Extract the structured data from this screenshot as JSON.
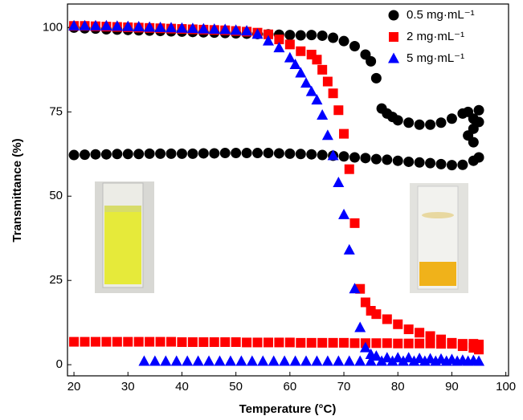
{
  "chart_data": {
    "type": "scatter",
    "x_label": "Temperature (°C)",
    "y_label": "Transmittance (%)",
    "xlim": [
      18.8,
      100.5
    ],
    "ylim": [
      -3.3,
      107
    ],
    "xticks": [
      20,
      30,
      40,
      50,
      60,
      70,
      80,
      90,
      100
    ],
    "yticks": [
      0,
      25,
      50,
      75,
      100
    ],
    "legend": "upper right",
    "series": [
      {
        "name": "0.5 mg·mL⁻¹",
        "color": "#000000",
        "marker": "circle",
        "x": [
          20,
          22,
          24,
          26,
          28,
          30,
          32,
          34,
          36,
          38,
          40,
          42,
          44,
          46,
          48,
          50,
          52,
          54,
          56,
          58,
          60,
          62,
          64,
          66,
          68,
          70,
          72,
          74,
          75,
          76,
          77,
          78,
          79,
          80,
          82,
          84,
          86,
          88,
          90,
          92,
          93,
          94,
          95,
          95,
          94,
          93,
          94,
          95,
          94,
          92,
          90,
          88,
          86,
          84,
          82,
          80,
          78,
          76,
          74,
          72,
          70,
          68,
          66,
          64,
          62,
          60,
          58,
          56,
          54,
          52,
          50,
          48,
          46,
          44,
          42,
          40,
          38,
          36,
          34,
          32,
          30,
          28,
          26,
          24,
          22,
          20
        ],
        "values": [
          100,
          99.8,
          99.7,
          99.5,
          99.4,
          99.3,
          99.2,
          99.1,
          99,
          98.9,
          98.8,
          98.7,
          98.6,
          98.5,
          98.4,
          98.3,
          98.2,
          98.1,
          98,
          97.9,
          97.8,
          97.7,
          97.8,
          97.6,
          97,
          96,
          94.5,
          92,
          90,
          85,
          76,
          74.5,
          73.5,
          72.5,
          71.8,
          71.2,
          71.2,
          71.8,
          73,
          74.5,
          75,
          73,
          75.5,
          72,
          70,
          68,
          66,
          61.5,
          60.5,
          59.3,
          59.2,
          59.5,
          59.8,
          60,
          60.2,
          60.5,
          60.8,
          61,
          61.3,
          61.5,
          61.8,
          62,
          62.2,
          62.4,
          62.5,
          62.6,
          62.7,
          62.8,
          62.8,
          62.8,
          62.8,
          62.8,
          62.7,
          62.7,
          62.6,
          62.6,
          62.6,
          62.6,
          62.6,
          62.5,
          62.5,
          62.5,
          62.4,
          62.4,
          62.3,
          62.2
        ]
      },
      {
        "name": "2 mg·mL⁻¹",
        "color": "#ff0000",
        "marker": "square",
        "x": [
          20,
          22,
          24,
          26,
          28,
          30,
          32,
          34,
          36,
          38,
          40,
          42,
          44,
          46,
          48,
          50,
          52,
          54,
          56,
          58,
          60,
          62,
          64,
          65,
          66,
          67,
          68,
          69,
          70,
          71,
          72,
          73,
          74,
          75,
          76,
          78,
          80,
          82,
          84,
          86,
          88,
          90,
          92,
          94,
          95,
          95,
          94,
          92,
          90,
          88,
          86,
          84,
          82,
          80,
          78,
          76,
          74,
          72,
          70,
          68,
          66,
          64,
          62,
          60,
          58,
          56,
          54,
          52,
          50,
          48,
          46,
          44,
          42,
          40,
          38,
          36,
          34,
          32,
          30,
          28,
          26,
          24,
          22,
          20
        ],
        "values": [
          100.5,
          100.5,
          100.4,
          100.3,
          100.2,
          100.1,
          100,
          99.9,
          99.8,
          99.7,
          99.6,
          99.5,
          99.4,
          99.3,
          99.2,
          99,
          98.8,
          98.5,
          98,
          96.5,
          95,
          93,
          92,
          90.5,
          87.5,
          84,
          80.5,
          75.5,
          68.5,
          58,
          42,
          22.5,
          18.5,
          16,
          15,
          13.5,
          12,
          10.5,
          9.5,
          8.5,
          7.5,
          6.5,
          5.5,
          5,
          4.5,
          6,
          6.2,
          6.2,
          6.2,
          6.2,
          6.3,
          6.3,
          6.3,
          6.3,
          6.4,
          6.4,
          6.4,
          6.4,
          6.5,
          6.5,
          6.5,
          6.5,
          6.5,
          6.6,
          6.6,
          6.6,
          6.6,
          6.6,
          6.7,
          6.7,
          6.7,
          6.7,
          6.7,
          6.7,
          6.8,
          6.8,
          6.8,
          6.8,
          6.8,
          6.8,
          6.8,
          6.8,
          6.8,
          6.8
        ]
      },
      {
        "name": "5 mg·mL⁻¹",
        "color": "#0000ff",
        "marker": "triangle",
        "x": [
          20,
          22,
          24,
          26,
          28,
          30,
          32,
          34,
          36,
          38,
          40,
          42,
          44,
          46,
          48,
          50,
          52,
          54,
          56,
          58,
          60,
          61,
          62,
          63,
          64,
          65,
          66,
          67,
          68,
          69,
          70,
          71,
          72,
          73,
          74,
          75,
          76,
          78,
          80,
          82,
          84,
          86,
          88,
          90,
          92,
          94,
          95,
          93,
          91,
          89,
          87,
          85,
          83,
          81,
          79,
          77,
          75,
          73,
          71,
          69,
          67,
          65,
          63,
          61,
          59,
          57,
          55,
          53,
          51,
          49,
          47,
          45,
          43,
          41,
          39,
          37,
          35,
          33
        ],
        "values": [
          100.5,
          100.5,
          100.5,
          100.5,
          100.4,
          100.3,
          100.2,
          100.1,
          100,
          99.9,
          99.8,
          99.7,
          99.6,
          99.5,
          99.4,
          99.2,
          99,
          98,
          96,
          94,
          91,
          89,
          86.5,
          83.5,
          81,
          78.5,
          74,
          68,
          62,
          54,
          44.5,
          34,
          22.5,
          11,
          5,
          3,
          2.5,
          2,
          2,
          2,
          1.8,
          1.7,
          1.6,
          1.5,
          1.3,
          1.2,
          1,
          1,
          1,
          1,
          1,
          1,
          1,
          1,
          1,
          1,
          1,
          1,
          1,
          1,
          1,
          1,
          1,
          1,
          1,
          1,
          1,
          1,
          1,
          1,
          1,
          1,
          1,
          1,
          1,
          1,
          1,
          1
        ]
      }
    ]
  }
}
